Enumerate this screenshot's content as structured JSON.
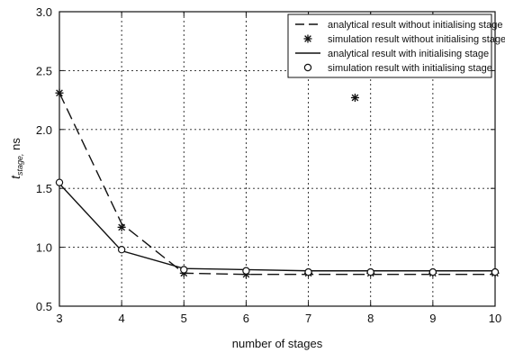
{
  "chart_data": {
    "type": "line",
    "title": "",
    "xlabel": "number of stages",
    "ylabel_main": "t",
    "ylabel_sub": "stage,",
    "ylabel_unit": " ns",
    "x": [
      3,
      4,
      5,
      6,
      7,
      8,
      9,
      10
    ],
    "xlim": [
      3,
      10
    ],
    "ylim": [
      0.5,
      3.0
    ],
    "x_ticks": [
      "3",
      "4",
      "5",
      "6",
      "7",
      "8",
      "9",
      "10"
    ],
    "y_ticks": [
      "0.5",
      "1.0",
      "1.5",
      "2.0",
      "2.5",
      "3.0"
    ],
    "grid": true,
    "legend_position": "top-right",
    "series": [
      {
        "name": "analytical result without initialising stage",
        "style": "dashed-line",
        "values": [
          2.31,
          1.2,
          0.78,
          0.77,
          0.77,
          0.77,
          0.77,
          0.77
        ]
      },
      {
        "name": "simulation result without initialising stage",
        "style": "star-marker",
        "values": [
          2.31,
          1.17,
          0.78,
          0.77,
          0.78,
          0.78,
          0.78,
          0.78
        ]
      },
      {
        "name": "analytical result with initialising stage",
        "style": "solid-line",
        "values": [
          1.54,
          0.97,
          0.82,
          0.81,
          0.8,
          0.8,
          0.8,
          0.8
        ]
      },
      {
        "name": "simulation result with initialising stage",
        "style": "circle-marker",
        "values": [
          1.55,
          0.98,
          0.81,
          0.8,
          0.79,
          0.79,
          0.79,
          0.79
        ]
      }
    ],
    "annotations": [
      {
        "type": "star-marker",
        "x": 7.75,
        "y": 2.27
      }
    ]
  }
}
